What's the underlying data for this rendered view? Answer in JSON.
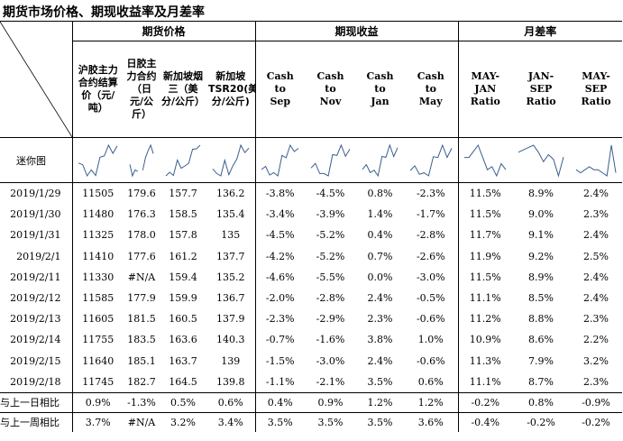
{
  "title": "期货市场价格、期现收益率及月差率",
  "groups": {
    "futures": "期货价格",
    "spot_return": "期现收益",
    "spread": "月差率"
  },
  "columns": [
    "沪胶主力合约结算价（元/吨）",
    "日胶主力合约（日元/公斤）",
    "新加坡烟三（美分/公斤）",
    "新加坡TSR20(美分/公斤)",
    "Cash to Sep",
    "Cash to Nov",
    "Cash to Jan",
    "Cash to May",
    "MAY-JAN Ratio",
    "JAN-SEP Ratio",
    "MAY-SEP Ratio"
  ],
  "sparkline_label": "迷你图",
  "rows": [
    {
      "date": "2019/1/29",
      "v": [
        "11505",
        "179.6",
        "157.7",
        "136.2",
        "-3.8%",
        "-4.5%",
        "0.8%",
        "-2.3%",
        "11.5%",
        "8.9%",
        "2.4%"
      ]
    },
    {
      "date": "2019/1/30",
      "v": [
        "11480",
        "176.3",
        "158.5",
        "135.4",
        "-3.4%",
        "-3.9%",
        "1.4%",
        "-1.7%",
        "11.5%",
        "9.0%",
        "2.3%"
      ]
    },
    {
      "date": "2019/1/31",
      "v": [
        "11325",
        "178.0",
        "157.8",
        "135",
        "-4.5%",
        "-5.2%",
        "0.4%",
        "-2.8%",
        "11.7%",
        "9.1%",
        "2.4%"
      ]
    },
    {
      "date": "2019/2/1",
      "v": [
        "11410",
        "177.6",
        "161.2",
        "137.7",
        "-4.2%",
        "-5.2%",
        "0.7%",
        "-2.6%",
        "11.9%",
        "9.2%",
        "2.5%"
      ]
    },
    {
      "date": "2019/2/11",
      "v": [
        "11330",
        "#N/A",
        "159.4",
        "135.2",
        "-4.6%",
        "-5.5%",
        "0.0%",
        "-3.0%",
        "11.5%",
        "8.9%",
        "2.4%"
      ]
    },
    {
      "date": "2019/2/12",
      "v": [
        "11585",
        "177.9",
        "159.9",
        "136.7",
        "-2.0%",
        "-2.8%",
        "2.4%",
        "-0.5%",
        "11.1%",
        "8.5%",
        "2.4%"
      ]
    },
    {
      "date": "2019/2/13",
      "v": [
        "11605",
        "181.5",
        "160.5",
        "137.9",
        "-2.3%",
        "-2.9%",
        "2.3%",
        "-0.6%",
        "11.2%",
        "8.8%",
        "2.3%"
      ]
    },
    {
      "date": "2019/2/14",
      "v": [
        "11755",
        "183.5",
        "163.6",
        "140.3",
        "-0.7%",
        "-1.6%",
        "3.8%",
        "1.0%",
        "10.9%",
        "8.6%",
        "2.2%"
      ]
    },
    {
      "date": "2019/2/15",
      "v": [
        "11640",
        "185.1",
        "163.7",
        "139",
        "-1.5%",
        "-3.0%",
        "2.4%",
        "-0.6%",
        "11.3%",
        "7.9%",
        "3.2%"
      ]
    },
    {
      "date": "2019/2/18",
      "v": [
        "11745",
        "182.7",
        "164.5",
        "139.8",
        "-1.1%",
        "-2.1%",
        "3.5%",
        "0.6%",
        "11.1%",
        "8.7%",
        "2.3%"
      ]
    }
  ],
  "summary": [
    {
      "label": "与上一日相比",
      "v": [
        "0.9%",
        "-1.3%",
        "0.5%",
        "0.6%",
        "0.4%",
        "0.9%",
        "1.2%",
        "1.2%",
        "-0.2%",
        "0.8%",
        "-0.9%"
      ]
    },
    {
      "label": "与上一周相比",
      "v": [
        "3.7%",
        "#N/A",
        "3.2%",
        "3.4%",
        "3.5%",
        "3.5%",
        "3.5%",
        "3.6%",
        "-0.4%",
        "-0.2%",
        "-0.2%"
      ]
    }
  ]
}
